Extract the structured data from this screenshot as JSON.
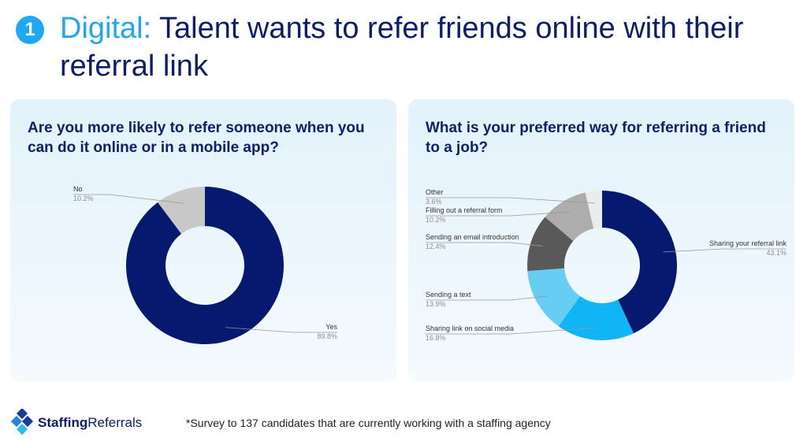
{
  "header": {
    "number": "1",
    "title_accent": "Digital:",
    "title_rest": " Talent wants to refer friends online with their referral link"
  },
  "colors": {
    "accent": "#1ea7f2",
    "navy": "#0e1d6b",
    "card_bg": "#e8f4fc"
  },
  "chart_data": [
    {
      "type": "pie",
      "title": "Are you more likely to refer someone when you can do it online or in a mobile app?",
      "donut": true,
      "slices": [
        {
          "label": "Yes",
          "value": 89.8,
          "value_label": "89.8%",
          "color": "#06196e"
        },
        {
          "label": "No",
          "value": 10.2,
          "value_label": "10.2%",
          "color": "#c8c8c8"
        }
      ]
    },
    {
      "type": "pie",
      "title": "What is your preferred way for referring a friend to a job?",
      "donut": true,
      "slices": [
        {
          "label": "Sharing your referral link",
          "value": 43.1,
          "value_label": "43.1%",
          "color": "#06196e"
        },
        {
          "label": "Sharing link on social media",
          "value": 16.8,
          "value_label": "16.8%",
          "color": "#10b5f5"
        },
        {
          "label": "Sending a text",
          "value": 13.9,
          "value_label": "13.9%",
          "color": "#67cdf2"
        },
        {
          "label": "Sending an email introduction",
          "value": 12.4,
          "value_label": "12.4%",
          "color": "#595959"
        },
        {
          "label": "Filling out a referral form",
          "value": 10.2,
          "value_label": "10.2%",
          "color": "#adadad"
        },
        {
          "label": "Other",
          "value": 3.6,
          "value_label": "3.6%",
          "color": "#ececec"
        }
      ]
    }
  ],
  "footer": {
    "brand_bold": "Staffing",
    "brand_rest": "Referrals",
    "footnote": "*Survey to 137 candidates that are currently working with a staffing agency"
  }
}
